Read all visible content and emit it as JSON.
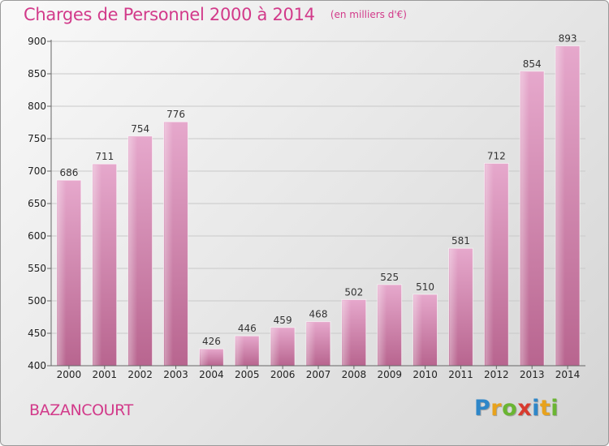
{
  "chart_data": {
    "type": "bar",
    "title": "Charges de Personnel 2000 à 2014",
    "unit": "(en milliers d'€)",
    "categories": [
      "2000",
      "2001",
      "2002",
      "2003",
      "2004",
      "2005",
      "2006",
      "2007",
      "2008",
      "2009",
      "2010",
      "2011",
      "2012",
      "2013",
      "2014"
    ],
    "values": [
      686,
      711,
      754,
      776,
      426,
      446,
      459,
      468,
      502,
      525,
      510,
      581,
      712,
      854,
      893
    ],
    "ylim": [
      400,
      900
    ],
    "yticks": [
      400,
      450,
      500,
      550,
      600,
      650,
      700,
      750,
      800,
      850,
      900
    ],
    "xlabel": "",
    "ylabel": "",
    "grid": true,
    "bar_color": "#c978a8"
  },
  "footer": {
    "commune": "BAZANCOURT",
    "logo_letters": [
      {
        "ch": "P",
        "color": "#2e86c8"
      },
      {
        "ch": "r",
        "color": "#e8a21c"
      },
      {
        "ch": "o",
        "color": "#6ab532"
      },
      {
        "ch": "x",
        "color": "#d83a2e"
      },
      {
        "ch": "i",
        "color": "#2e86c8"
      },
      {
        "ch": "t",
        "color": "#e8a21c"
      },
      {
        "ch": "i",
        "color": "#6ab532"
      }
    ]
  }
}
